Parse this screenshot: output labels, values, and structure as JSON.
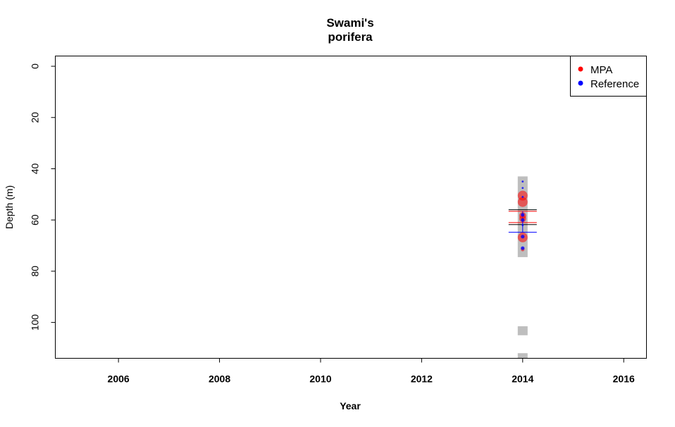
{
  "chart_data": {
    "type": "scatter",
    "title_line1": "Swami's",
    "title_line2": "porifera",
    "xlabel": "Year",
    "ylabel": "Depth (m)",
    "xlim": [
      2004.75,
      2016.45
    ],
    "ylim": [
      114,
      -4
    ],
    "y_reversed": true,
    "x_ticks": [
      2006,
      2008,
      2010,
      2012,
      2014,
      2016
    ],
    "y_ticks": [
      0,
      20,
      40,
      60,
      80,
      100
    ],
    "grid": false,
    "legend_position": "top-right",
    "legend": [
      {
        "name": "MPA",
        "color": "#ff0000"
      },
      {
        "name": "Reference",
        "color": "#0000ff"
      }
    ],
    "survey_ranges": [
      {
        "x": 2014,
        "y_from": 43,
        "y_to": 74.5
      },
      {
        "x": 2014,
        "y_from": 101.5,
        "y_to": 105
      },
      {
        "x": 2014,
        "y_from": 112,
        "y_to": 114
      }
    ],
    "series": [
      {
        "name": "MPA",
        "color": "#ff0000",
        "points": [
          {
            "x": 2014,
            "y": 50.5,
            "size": "large"
          },
          {
            "x": 2014,
            "y": 53.0,
            "size": "large"
          },
          {
            "x": 2014,
            "y": 58.3,
            "size": "medium"
          },
          {
            "x": 2014,
            "y": 59.5,
            "size": "medium"
          },
          {
            "x": 2014,
            "y": 66.8,
            "size": "large"
          },
          {
            "x": 2014,
            "y": 71.5,
            "size": "small"
          }
        ]
      },
      {
        "name": "Reference",
        "color": "#0000ff",
        "points": [
          {
            "x": 2014,
            "y": 45.0,
            "size": "tiny"
          },
          {
            "x": 2014,
            "y": 47.5,
            "size": "tiny"
          },
          {
            "x": 2014,
            "y": 51.0,
            "size": "tiny"
          },
          {
            "x": 2014,
            "y": 58.0,
            "size": "small"
          },
          {
            "x": 2014,
            "y": 60.0,
            "size": "small"
          },
          {
            "x": 2014,
            "y": 62.0,
            "size": "tiny"
          },
          {
            "x": 2014,
            "y": 66.5,
            "size": "small"
          },
          {
            "x": 2014,
            "y": 71.0,
            "size": "small"
          }
        ]
      }
    ],
    "summary_lines": [
      {
        "x": 2014,
        "y": 56.0,
        "color": "#000000"
      },
      {
        "x": 2014,
        "y": 56.6,
        "color": "#ff0000"
      },
      {
        "x": 2014,
        "y": 61.0,
        "color": "#ff0000"
      },
      {
        "x": 2014,
        "y": 61.8,
        "color": "#000000"
      },
      {
        "x": 2014,
        "y": 64.8,
        "color": "#0000ff"
      }
    ],
    "error_bar": {
      "x": 2014,
      "y_from": 56.6,
      "y_to": 64.8,
      "color": "#0000ff"
    }
  }
}
